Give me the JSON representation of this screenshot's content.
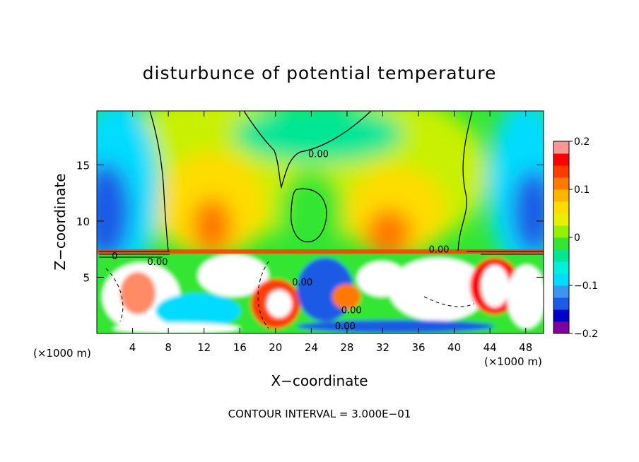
{
  "chart_data": {
    "type": "heatmap",
    "title": "disturbunce of potential temperature",
    "xlabel": "X−coordinate",
    "ylabel": "Z−coordinate",
    "x_unit_left": "(×1000 m)",
    "x_unit_right": "(×1000 m)",
    "footer": "CONTOUR INTERVAL = 3.000E−01",
    "xlim": [
      0,
      50
    ],
    "ylim": [
      0,
      19.8
    ],
    "x_ticks": [
      4,
      8,
      12,
      16,
      20,
      24,
      28,
      32,
      36,
      40,
      44,
      48
    ],
    "y_ticks": [
      5,
      10,
      15
    ],
    "colorbar": {
      "min": -0.2,
      "max": 0.2,
      "ticks": [
        0.2,
        0.1,
        0,
        -0.1,
        -0.2
      ],
      "tick_labels": [
        "0.2",
        "0.1",
        "0",
        "−0.1",
        "−0.2"
      ],
      "colors": [
        "#7f00a0",
        "#0000c8",
        "#1e5ae6",
        "#3c96f0",
        "#00dcff",
        "#00f0dc",
        "#00e696",
        "#32e632",
        "#96f000",
        "#e6f000",
        "#ffdc00",
        "#ffb400",
        "#ff7800",
        "#ff3c00",
        "#ff0000",
        "#ff9696"
      ]
    },
    "contour_labels": [
      {
        "text": "0.00",
        "x": 24.8,
        "z": 16.0
      },
      {
        "text": "0.00",
        "x": 6.8,
        "z": 6.4
      },
      {
        "text": "0.00",
        "x": 38.3,
        "z": 7.5
      },
      {
        "text": "0.00",
        "x": 28.5,
        "z": 2.1
      },
      {
        "text": "0.00",
        "x": 27.8,
        "z": 0.7
      },
      {
        "text": "0.00",
        "x": 23.0,
        "z": 4.6
      },
      {
        "text": "0",
        "x": 2.0,
        "z": 6.9
      }
    ]
  }
}
